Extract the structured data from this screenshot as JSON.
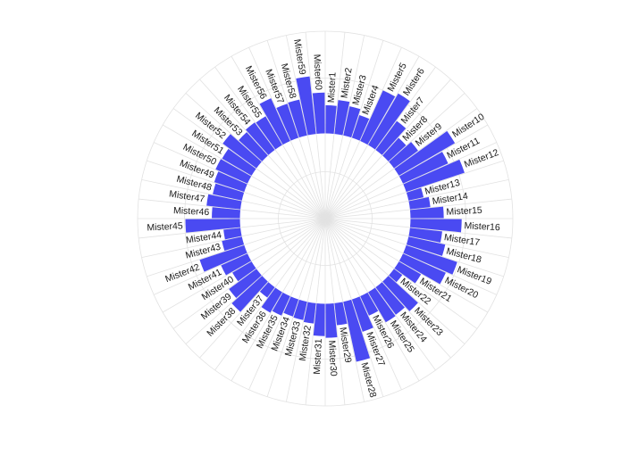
{
  "chart_data": {
    "type": "bar",
    "layout": "circular",
    "bar_color": "#4a4af2",
    "grid_color": "#e2e2e2",
    "grid": true,
    "ylim": [
      -100,
      120
    ],
    "categories": [
      "Mister1",
      "Mister2",
      "Mister3",
      "Mister4",
      "Mister5",
      "Mister6",
      "Mister7",
      "Mister8",
      "Mister9",
      "Mister10",
      "Mister11",
      "Mister12",
      "Mister13",
      "Mister14",
      "Mister15",
      "Mister16",
      "Mister17",
      "Mister18",
      "Mister19",
      "Mister20",
      "Mister21",
      "Mister22",
      "Mister23",
      "Mister24",
      "Mister25",
      "Mister26",
      "Mister27",
      "Mister28",
      "Mister29",
      "Mister30",
      "Mister31",
      "Mister32",
      "Mister33",
      "Mister34",
      "Mister35",
      "Mister36",
      "Mister37",
      "Mister38",
      "Mister39",
      "Mister40",
      "Mister41",
      "Mister42",
      "Mister43",
      "Mister44",
      "Mister45",
      "Mister46",
      "Mister47",
      "Mister48",
      "Mister49",
      "Mister50",
      "Mister51",
      "Mister52",
      "Mister53",
      "Mister54",
      "Mister55",
      "Mister56",
      "Mister57",
      "Mister58",
      "Mister59",
      "Mister60"
    ],
    "values": [
      33,
      40,
      35,
      28,
      65,
      70,
      42,
      28,
      35,
      76,
      58,
      72,
      18,
      24,
      39,
      60,
      38,
      44,
      63,
      55,
      30,
      12,
      47,
      40,
      41,
      25,
      40,
      72,
      26,
      40,
      38,
      24,
      22,
      21,
      25,
      28,
      15,
      48,
      40,
      26,
      34,
      55,
      24,
      20,
      64,
      33,
      40,
      35,
      37,
      41,
      40,
      49,
      37,
      40,
      39,
      55,
      42,
      43,
      68,
      48
    ]
  }
}
